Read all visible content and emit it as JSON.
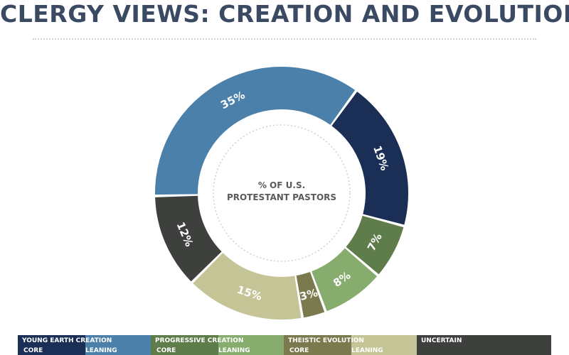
{
  "title": "CLERGY VIEWS: CREATION AND EVOLUTION",
  "chart_data": {
    "type": "pie",
    "donut": true,
    "center_label_lines": [
      "% OF U.S.",
      "PROTESTANT PASTORS"
    ],
    "slices": [
      {
        "label": "19%",
        "value": 19,
        "color": "#1b2f56",
        "group": "YOUNG EARTH CREATION",
        "sub": "CORE"
      },
      {
        "label": "7%",
        "value": 7,
        "color": "#5f7d4b",
        "group": "PROGRESSIVE CREATION",
        "sub": "CORE"
      },
      {
        "label": "8%",
        "value": 8,
        "color": "#87ad6e",
        "group": "PROGRESSIVE CREATION",
        "sub": "LEANING"
      },
      {
        "label": "3%",
        "value": 3,
        "color": "#7b7a4f",
        "group": "THEISTIC EVOLUTION",
        "sub": "CORE"
      },
      {
        "label": "15%",
        "value": 15,
        "color": "#c4c496",
        "group": "THEISTIC EVOLUTION",
        "sub": "LEANING"
      },
      {
        "label": "12%",
        "value": 12,
        "color": "#3d403d",
        "group": "UNCERTAIN",
        "sub": ""
      },
      {
        "label": "35%",
        "value": 35,
        "color": "#4b80aa",
        "group": "YOUNG EARTH CREATION",
        "sub": "LEANING"
      }
    ]
  },
  "legend": [
    {
      "name": "YOUNG EARTH CREATION",
      "core": "CORE",
      "leaning": "LEANING",
      "color_core": "#1b2f56",
      "color_leaning": "#4b80aa"
    },
    {
      "name": "PROGRESSIVE CREATION",
      "core": "CORE",
      "leaning": "LEANING",
      "color_core": "#5f7d4b",
      "color_leaning": "#87ad6e"
    },
    {
      "name": "THEISTIC EVOLUTION",
      "core": "CORE",
      "leaning": "LEANING",
      "color_core": "#7b7a4f",
      "color_leaning": "#c4c496"
    },
    {
      "name": "UNCERTAIN",
      "core": "",
      "leaning": "",
      "color_core": "#3d403d",
      "color_leaning": "#3d403d"
    }
  ]
}
